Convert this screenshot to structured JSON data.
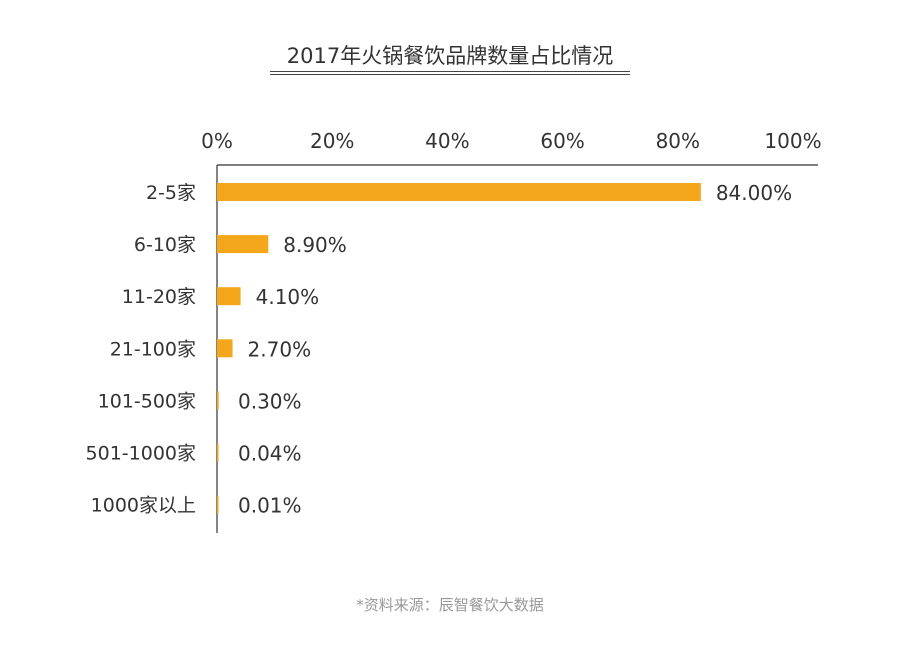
{
  "chart_data": {
    "type": "bar",
    "orientation": "horizontal",
    "title": "2017年火锅餐饮品牌数量占比情况",
    "categories": [
      "2-5家",
      "6-10家",
      "11-20家",
      "21-100家",
      "101-500家",
      "501-1000家",
      "1000家以上"
    ],
    "values": [
      84.0,
      8.9,
      4.1,
      2.7,
      0.3,
      0.04,
      0.01
    ],
    "data_labels": [
      "84.00%",
      "8.90%",
      "4.10%",
      "2.70%",
      "0.30%",
      "0.04%",
      "0.01%"
    ],
    "xlim": [
      0,
      100
    ],
    "x_ticks": [
      "0%",
      "20%",
      "40%",
      "60%",
      "80%",
      "100%"
    ],
    "x_axis_position": "top",
    "xlabel": "",
    "ylabel": "",
    "grid": false,
    "legend": "none",
    "bar_color": "#F5A71C",
    "source": "*资料来源：辰智餐饮大数据"
  }
}
